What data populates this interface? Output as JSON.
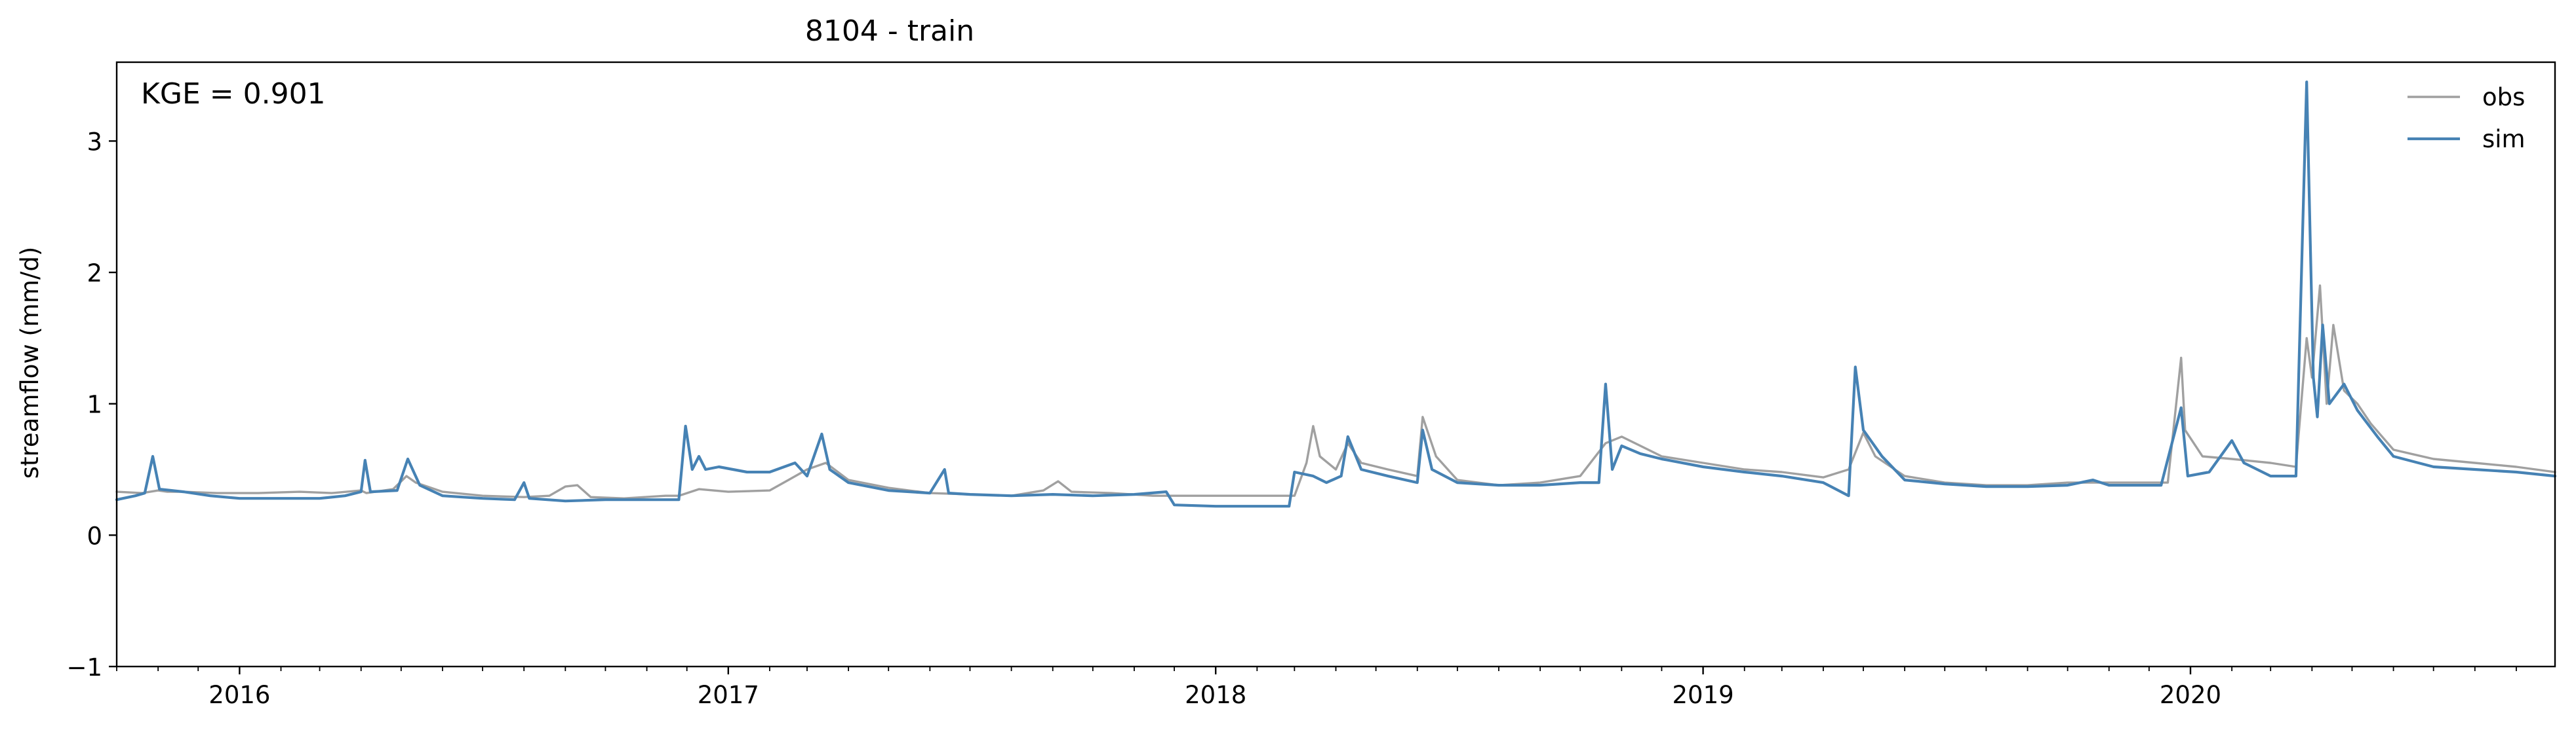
{
  "chart_data": {
    "type": "line",
    "title": "8104 - train",
    "xlabel": "",
    "ylabel": "streamflow (mm/d)",
    "annotation": "KGE = 0.901",
    "xlim": [
      "2015-10-01",
      "2020-09-30"
    ],
    "ylim": [
      -1,
      3.6
    ],
    "yticks": [
      -1,
      0,
      1,
      2,
      3
    ],
    "ytick_labels": [
      "−1",
      "0",
      "1",
      "2",
      "3"
    ],
    "xticks": [
      "2016-01-01",
      "2017-01-01",
      "2018-01-01",
      "2019-01-01",
      "2020-01-01"
    ],
    "xtick_labels": [
      "2016",
      "2017",
      "2018",
      "2019",
      "2020"
    ],
    "grid": false,
    "legend_position": "top-right",
    "series": [
      {
        "name": "obs",
        "color": "#a0a0a0",
        "points": [
          [
            "2015-10-01",
            0.33
          ],
          [
            "2015-10-20",
            0.32
          ],
          [
            "2015-11-01",
            0.34
          ],
          [
            "2015-11-08",
            0.33
          ],
          [
            "2015-11-20",
            0.33
          ],
          [
            "2015-12-15",
            0.32
          ],
          [
            "2016-01-15",
            0.32
          ],
          [
            "2016-02-15",
            0.33
          ],
          [
            "2016-03-10",
            0.32
          ],
          [
            "2016-04-01",
            0.34
          ],
          [
            "2016-04-05",
            0.32
          ],
          [
            "2016-04-25",
            0.35
          ],
          [
            "2016-05-05",
            0.45
          ],
          [
            "2016-05-12",
            0.4
          ],
          [
            "2016-06-01",
            0.33
          ],
          [
            "2016-07-01",
            0.3
          ],
          [
            "2016-08-01",
            0.29
          ],
          [
            "2016-08-20",
            0.3
          ],
          [
            "2016-09-01",
            0.37
          ],
          [
            "2016-09-10",
            0.38
          ],
          [
            "2016-09-20",
            0.29
          ],
          [
            "2016-10-15",
            0.28
          ],
          [
            "2016-11-15",
            0.3
          ],
          [
            "2016-11-25",
            0.3
          ],
          [
            "2016-12-10",
            0.35
          ],
          [
            "2017-01-01",
            0.33
          ],
          [
            "2017-02-01",
            0.34
          ],
          [
            "2017-02-15",
            0.42
          ],
          [
            "2017-03-01",
            0.5
          ],
          [
            "2017-03-15",
            0.55
          ],
          [
            "2017-04-01",
            0.42
          ],
          [
            "2017-05-01",
            0.36
          ],
          [
            "2017-06-01",
            0.32
          ],
          [
            "2017-07-01",
            0.31
          ],
          [
            "2017-08-01",
            0.3
          ],
          [
            "2017-08-25",
            0.34
          ],
          [
            "2017-09-05",
            0.41
          ],
          [
            "2017-09-15",
            0.33
          ],
          [
            "2017-10-15",
            0.32
          ],
          [
            "2017-11-15",
            0.3
          ],
          [
            "2017-12-01",
            0.3
          ],
          [
            "2018-01-01",
            0.3
          ],
          [
            "2018-02-01",
            0.3
          ],
          [
            "2018-03-01",
            0.3
          ],
          [
            "2018-03-10",
            0.55
          ],
          [
            "2018-03-15",
            0.83
          ],
          [
            "2018-03-20",
            0.6
          ],
          [
            "2018-04-01",
            0.5
          ],
          [
            "2018-04-10",
            0.7
          ],
          [
            "2018-04-20",
            0.55
          ],
          [
            "2018-05-10",
            0.5
          ],
          [
            "2018-06-01",
            0.45
          ],
          [
            "2018-06-05",
            0.9
          ],
          [
            "2018-06-15",
            0.6
          ],
          [
            "2018-07-01",
            0.42
          ],
          [
            "2018-08-01",
            0.38
          ],
          [
            "2018-09-01",
            0.4
          ],
          [
            "2018-10-01",
            0.45
          ],
          [
            "2018-10-20",
            0.7
          ],
          [
            "2018-11-01",
            0.75
          ],
          [
            "2018-11-15",
            0.68
          ],
          [
            "2018-12-01",
            0.6
          ],
          [
            "2019-01-01",
            0.55
          ],
          [
            "2019-02-01",
            0.5
          ],
          [
            "2019-03-01",
            0.48
          ],
          [
            "2019-04-01",
            0.44
          ],
          [
            "2019-04-20",
            0.5
          ],
          [
            "2019-05-01",
            0.78
          ],
          [
            "2019-05-10",
            0.6
          ],
          [
            "2019-06-01",
            0.45
          ],
          [
            "2019-07-01",
            0.4
          ],
          [
            "2019-08-01",
            0.38
          ],
          [
            "2019-09-01",
            0.38
          ],
          [
            "2019-10-01",
            0.4
          ],
          [
            "2019-11-01",
            0.4
          ],
          [
            "2019-12-15",
            0.4
          ],
          [
            "2019-12-25",
            1.35
          ],
          [
            "2019-12-28",
            0.8
          ],
          [
            "2020-01-10",
            0.6
          ],
          [
            "2020-02-01",
            0.58
          ],
          [
            "2020-03-01",
            0.55
          ],
          [
            "2020-03-20",
            0.52
          ],
          [
            "2020-03-28",
            1.5
          ],
          [
            "2020-04-01",
            1.2
          ],
          [
            "2020-04-07",
            1.9
          ],
          [
            "2020-04-12",
            1.0
          ],
          [
            "2020-04-17",
            1.6
          ],
          [
            "2020-04-25",
            1.1
          ],
          [
            "2020-05-05",
            1.0
          ],
          [
            "2020-05-15",
            0.85
          ],
          [
            "2020-06-01",
            0.65
          ],
          [
            "2020-07-01",
            0.58
          ],
          [
            "2020-08-01",
            0.55
          ],
          [
            "2020-09-01",
            0.52
          ],
          [
            "2020-09-30",
            0.48
          ]
        ]
      },
      {
        "name": "sim",
        "color": "#4682b4",
        "points": [
          [
            "2015-10-01",
            0.27
          ],
          [
            "2015-10-15",
            0.3
          ],
          [
            "2015-10-22",
            0.32
          ],
          [
            "2015-10-28",
            0.6
          ],
          [
            "2015-11-02",
            0.35
          ],
          [
            "2015-11-20",
            0.33
          ],
          [
            "2015-12-10",
            0.3
          ],
          [
            "2016-01-01",
            0.28
          ],
          [
            "2016-02-01",
            0.28
          ],
          [
            "2016-03-01",
            0.28
          ],
          [
            "2016-03-20",
            0.3
          ],
          [
            "2016-04-01",
            0.33
          ],
          [
            "2016-04-04",
            0.57
          ],
          [
            "2016-04-08",
            0.33
          ],
          [
            "2016-04-28",
            0.34
          ],
          [
            "2016-05-06",
            0.58
          ],
          [
            "2016-05-15",
            0.38
          ],
          [
            "2016-06-01",
            0.3
          ],
          [
            "2016-07-01",
            0.28
          ],
          [
            "2016-07-25",
            0.27
          ],
          [
            "2016-08-01",
            0.4
          ],
          [
            "2016-08-05",
            0.28
          ],
          [
            "2016-09-01",
            0.26
          ],
          [
            "2016-10-01",
            0.27
          ],
          [
            "2016-11-01",
            0.27
          ],
          [
            "2016-11-25",
            0.27
          ],
          [
            "2016-11-30",
            0.83
          ],
          [
            "2016-12-05",
            0.5
          ],
          [
            "2016-12-10",
            0.6
          ],
          [
            "2016-12-15",
            0.5
          ],
          [
            "2016-12-25",
            0.52
          ],
          [
            "2017-01-15",
            0.48
          ],
          [
            "2017-02-01",
            0.48
          ],
          [
            "2017-02-20",
            0.55
          ],
          [
            "2017-03-01",
            0.45
          ],
          [
            "2017-03-12",
            0.77
          ],
          [
            "2017-03-18",
            0.5
          ],
          [
            "2017-04-01",
            0.4
          ],
          [
            "2017-05-01",
            0.34
          ],
          [
            "2017-06-01",
            0.32
          ],
          [
            "2017-06-12",
            0.5
          ],
          [
            "2017-06-15",
            0.32
          ],
          [
            "2017-07-01",
            0.31
          ],
          [
            "2017-08-01",
            0.3
          ],
          [
            "2017-09-01",
            0.31
          ],
          [
            "2017-10-01",
            0.3
          ],
          [
            "2017-11-01",
            0.31
          ],
          [
            "2017-11-25",
            0.33
          ],
          [
            "2017-12-01",
            0.23
          ],
          [
            "2018-01-01",
            0.22
          ],
          [
            "2018-02-01",
            0.22
          ],
          [
            "2018-02-25",
            0.22
          ],
          [
            "2018-03-01",
            0.48
          ],
          [
            "2018-03-15",
            0.45
          ],
          [
            "2018-03-25",
            0.4
          ],
          [
            "2018-04-05",
            0.45
          ],
          [
            "2018-04-10",
            0.75
          ],
          [
            "2018-04-20",
            0.5
          ],
          [
            "2018-05-10",
            0.45
          ],
          [
            "2018-06-01",
            0.4
          ],
          [
            "2018-06-05",
            0.8
          ],
          [
            "2018-06-12",
            0.5
          ],
          [
            "2018-07-01",
            0.4
          ],
          [
            "2018-08-01",
            0.38
          ],
          [
            "2018-09-01",
            0.38
          ],
          [
            "2018-10-01",
            0.4
          ],
          [
            "2018-10-15",
            0.4
          ],
          [
            "2018-10-20",
            1.15
          ],
          [
            "2018-10-25",
            0.5
          ],
          [
            "2018-11-01",
            0.68
          ],
          [
            "2018-11-15",
            0.62
          ],
          [
            "2018-12-01",
            0.58
          ],
          [
            "2019-01-01",
            0.52
          ],
          [
            "2019-02-01",
            0.48
          ],
          [
            "2019-03-01",
            0.45
          ],
          [
            "2019-04-01",
            0.4
          ],
          [
            "2019-04-20",
            0.3
          ],
          [
            "2019-04-25",
            1.28
          ],
          [
            "2019-05-01",
            0.8
          ],
          [
            "2019-05-15",
            0.6
          ],
          [
            "2019-06-01",
            0.42
          ],
          [
            "2019-07-01",
            0.39
          ],
          [
            "2019-08-01",
            0.37
          ],
          [
            "2019-09-01",
            0.37
          ],
          [
            "2019-10-01",
            0.38
          ],
          [
            "2019-10-20",
            0.42
          ],
          [
            "2019-11-01",
            0.38
          ],
          [
            "2019-12-10",
            0.38
          ],
          [
            "2019-12-25",
            0.97
          ],
          [
            "2019-12-30",
            0.45
          ],
          [
            "2020-01-15",
            0.48
          ],
          [
            "2020-02-01",
            0.72
          ],
          [
            "2020-02-10",
            0.55
          ],
          [
            "2020-03-01",
            0.45
          ],
          [
            "2020-03-20",
            0.45
          ],
          [
            "2020-03-28",
            3.45
          ],
          [
            "2020-04-02",
            1.2
          ],
          [
            "2020-04-05",
            0.9
          ],
          [
            "2020-04-09",
            1.6
          ],
          [
            "2020-04-14",
            1.0
          ],
          [
            "2020-04-25",
            1.15
          ],
          [
            "2020-05-05",
            0.95
          ],
          [
            "2020-05-20",
            0.75
          ],
          [
            "2020-06-01",
            0.6
          ],
          [
            "2020-07-01",
            0.52
          ],
          [
            "2020-08-01",
            0.5
          ],
          [
            "2020-09-01",
            0.48
          ],
          [
            "2020-09-30",
            0.45
          ]
        ]
      }
    ]
  }
}
